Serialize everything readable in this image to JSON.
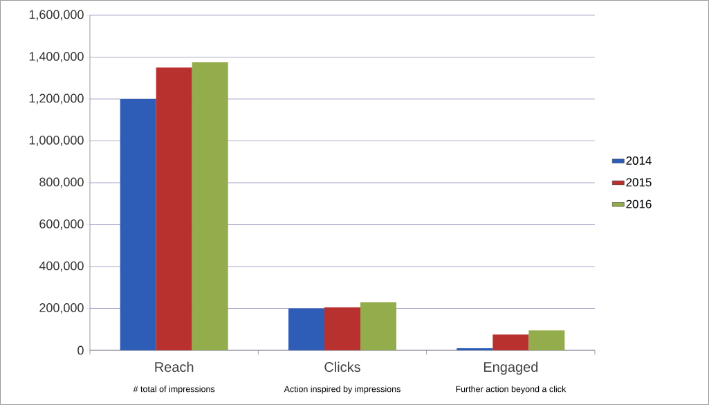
{
  "chart_data": {
    "type": "bar",
    "categories": [
      "Reach",
      "Clicks",
      "Engaged"
    ],
    "series": [
      {
        "name": "2014",
        "color": "#2e5db8",
        "values": [
          1200000,
          200000,
          10000
        ]
      },
      {
        "name": "2015",
        "color": "#b8312f",
        "values": [
          1350000,
          205000,
          75000
        ]
      },
      {
        "name": "2016",
        "color": "#93ad4c",
        "values": [
          1375000,
          230000,
          95000
        ]
      }
    ],
    "annotations": [
      "# total of impressions",
      "Action inspired by impressions",
      "Further action beyond a click"
    ],
    "ylim": [
      0,
      1600000
    ],
    "yticks": [
      0,
      {
        "value": 200000,
        "label": "200,000"
      },
      {
        "value": 400000,
        "label": "400,000"
      },
      {
        "value": 600000,
        "label": "600,000"
      },
      {
        "value": 800000,
        "label": "800,000"
      },
      {
        "value": 1000000,
        "label": "1,000,000"
      },
      {
        "value": 1200000,
        "label": "1,200,000"
      },
      {
        "value": 1400000,
        "label": "1,400,000"
      },
      {
        "value": 1600000,
        "label": "1,600,000"
      }
    ],
    "grid": "y",
    "legend": "right"
  }
}
